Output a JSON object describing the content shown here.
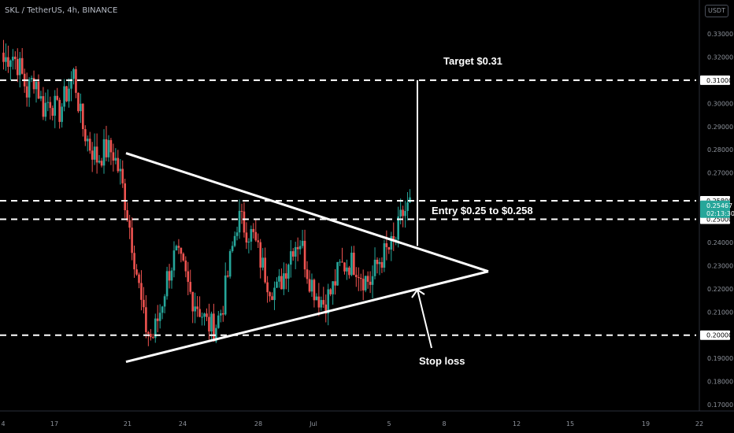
{
  "header": {
    "title": "SKL / TetherUS, 4h, BINANCE"
  },
  "toolbar": {
    "currency_label": "USDT"
  },
  "colors": {
    "up": "#26a69a",
    "down": "#ef5350",
    "lines": "#ffffff",
    "price_tag_bg": "#26a69a"
  },
  "chart_data": {
    "type": "candlestick",
    "symbol": "SKL / TetherUS",
    "timeframe": "4h",
    "exchange": "BINANCE",
    "ylim": [
      0.166,
      0.343
    ],
    "y_ticks": [
      "0.33000",
      "0.32000",
      "0.30000",
      "0.29000",
      "0.28000",
      "0.27000",
      "0.24000",
      "0.23000",
      "0.22000",
      "0.21000",
      "0.19000",
      "0.18000",
      "0.17000"
    ],
    "x_ticks": [
      "4",
      "17",
      "21",
      "24",
      "28",
      "Jul",
      "5",
      "8",
      "12",
      "15",
      "19",
      "22"
    ],
    "current_price": "0.25467",
    "countdown": "02:13:30",
    "horizontal_levels": [
      {
        "label": "0.31000",
        "value": 0.31
      },
      {
        "label": "0.25800",
        "value": 0.258
      },
      {
        "label": "0.25000",
        "value": 0.25
      },
      {
        "label": "0.20000",
        "value": 0.2
      }
    ],
    "annotations": [
      {
        "text": "Target $0.31"
      },
      {
        "text": "Entry $0.25 to $0.258"
      },
      {
        "text": "Stop loss"
      }
    ],
    "pattern": {
      "name": "symmetrical-triangle",
      "upper_line": [
        [
          0.2785
        ],
        [
          0.2385
        ]
      ],
      "apex": 0.2275,
      "lower_line": [
        [
          0.1885
        ],
        [
          0.2195
        ]
      ]
    },
    "candles_anchor_close": [
      0.318,
      0.322,
      0.316,
      0.305,
      0.312,
      0.298,
      0.302,
      0.295,
      0.304,
      0.313,
      0.291,
      0.282,
      0.276,
      0.28,
      0.279,
      0.268,
      0.25,
      0.228,
      0.205,
      0.198,
      0.21,
      0.226,
      0.235,
      0.228,
      0.217,
      0.212,
      0.205,
      0.203,
      0.212,
      0.232,
      0.251,
      0.246,
      0.242,
      0.231,
      0.222,
      0.219,
      0.228,
      0.239,
      0.241,
      0.226,
      0.218,
      0.214,
      0.219,
      0.229,
      0.231,
      0.231,
      0.225,
      0.223,
      0.232,
      0.236,
      0.239,
      0.252,
      0.256
    ]
  }
}
